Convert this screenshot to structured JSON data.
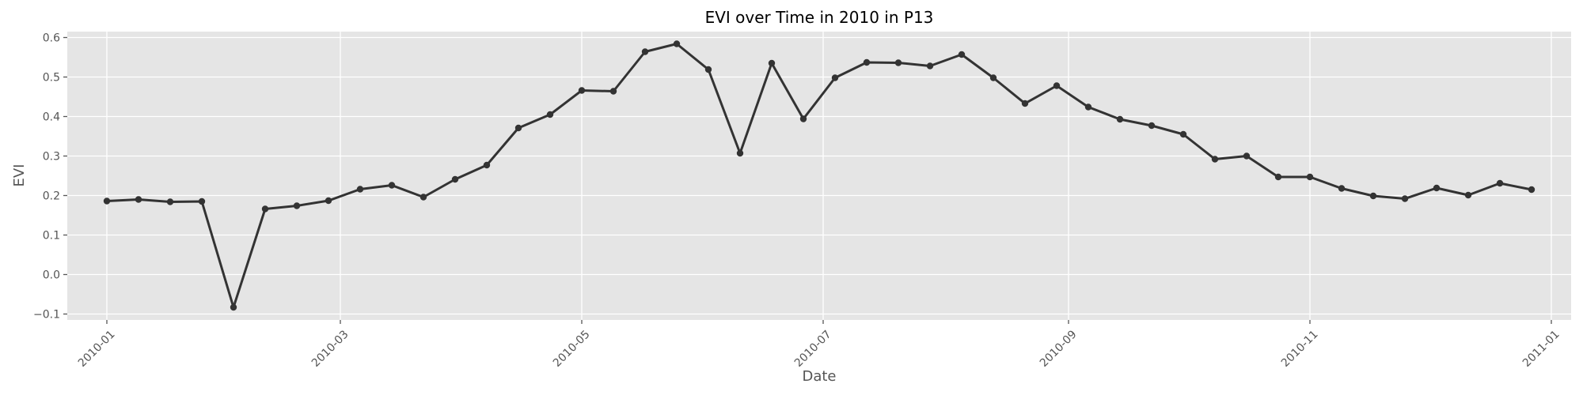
{
  "chart_data": {
    "type": "line",
    "title": "EVI over Time in 2010 in P13",
    "xlabel": "Date",
    "ylabel": "EVI",
    "xlim": [
      "2009-12-22",
      "2011-01-06"
    ],
    "ylim": [
      -0.115,
      0.615
    ],
    "grid": true,
    "x_ticks": [
      "2010-01",
      "2010-03",
      "2010-05",
      "2010-07",
      "2010-09",
      "2010-11",
      "2011-01"
    ],
    "y_ticks": [
      "−0.1",
      "0.0",
      "0.1",
      "0.2",
      "0.3",
      "0.4",
      "0.5",
      "0.6"
    ],
    "colors": {
      "line": "#333333",
      "plot_background": "#e5e5e5",
      "grid": "#ffffff"
    },
    "series": [
      {
        "x": [
          "2010-01-01",
          "2010-01-09",
          "2010-01-17",
          "2010-01-25",
          "2010-02-02",
          "2010-02-10",
          "2010-02-18",
          "2010-02-26",
          "2010-03-06",
          "2010-03-14",
          "2010-03-22",
          "2010-03-30",
          "2010-04-07",
          "2010-04-15",
          "2010-04-23",
          "2010-05-01",
          "2010-05-09",
          "2010-05-17",
          "2010-05-25",
          "2010-06-02",
          "2010-06-10",
          "2010-06-18",
          "2010-06-26",
          "2010-07-04",
          "2010-07-12",
          "2010-07-20",
          "2010-07-28",
          "2010-08-05",
          "2010-08-13",
          "2010-08-21",
          "2010-08-29",
          "2010-09-06",
          "2010-09-14",
          "2010-09-22",
          "2010-09-30",
          "2010-10-08",
          "2010-10-16",
          "2010-10-24",
          "2010-11-01",
          "2010-11-09",
          "2010-11-17",
          "2010-11-25",
          "2010-12-03",
          "2010-12-11",
          "2010-12-19",
          "2010-12-27"
        ],
        "y": [
          0.186,
          0.19,
          0.184,
          0.185,
          -0.083,
          0.166,
          0.174,
          0.187,
          0.216,
          0.226,
          0.196,
          0.241,
          0.277,
          0.371,
          0.405,
          0.466,
          0.464,
          0.564,
          0.584,
          0.519,
          0.307,
          0.535,
          0.394,
          0.498,
          0.537,
          0.536,
          0.528,
          0.557,
          0.498,
          0.433,
          0.478,
          0.424,
          0.393,
          0.377,
          0.355,
          0.292,
          0.3,
          0.247,
          0.247,
          0.218,
          0.199,
          0.192,
          0.219,
          0.201,
          0.231,
          0.215
        ]
      }
    ]
  }
}
